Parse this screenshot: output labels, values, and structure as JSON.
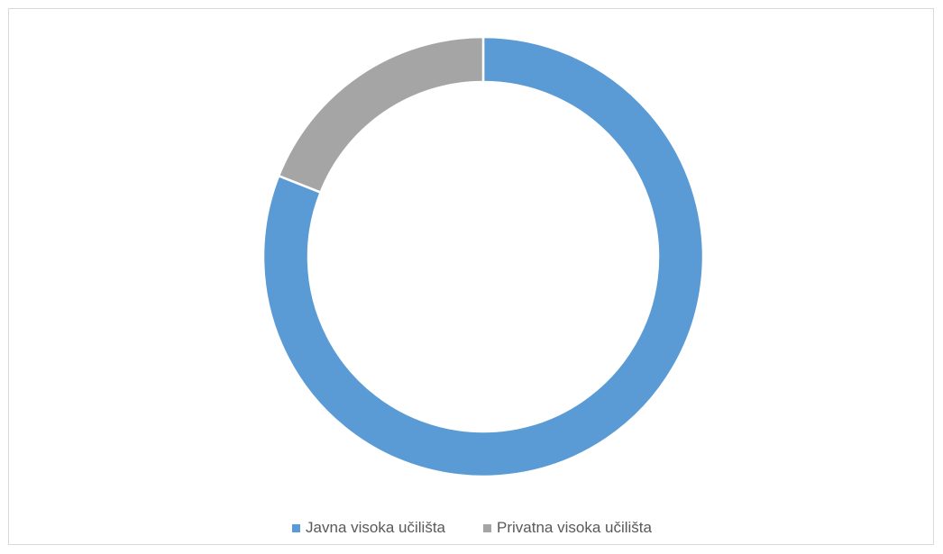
{
  "chart_data": {
    "type": "pie",
    "variant": "donut",
    "title": "",
    "categories": [
      "Javna visoka učilišta",
      "Privatna visoka učilišta"
    ],
    "values": [
      81,
      19
    ],
    "colors": [
      "#5b9bd5",
      "#a5a5a5"
    ],
    "legend_position": "bottom",
    "legend": [
      {
        "label": "Javna visoka učilišta",
        "color": "#5b9bd5"
      },
      {
        "label": "Privatna visoka učilišta",
        "color": "#a5a5a5"
      }
    ]
  }
}
